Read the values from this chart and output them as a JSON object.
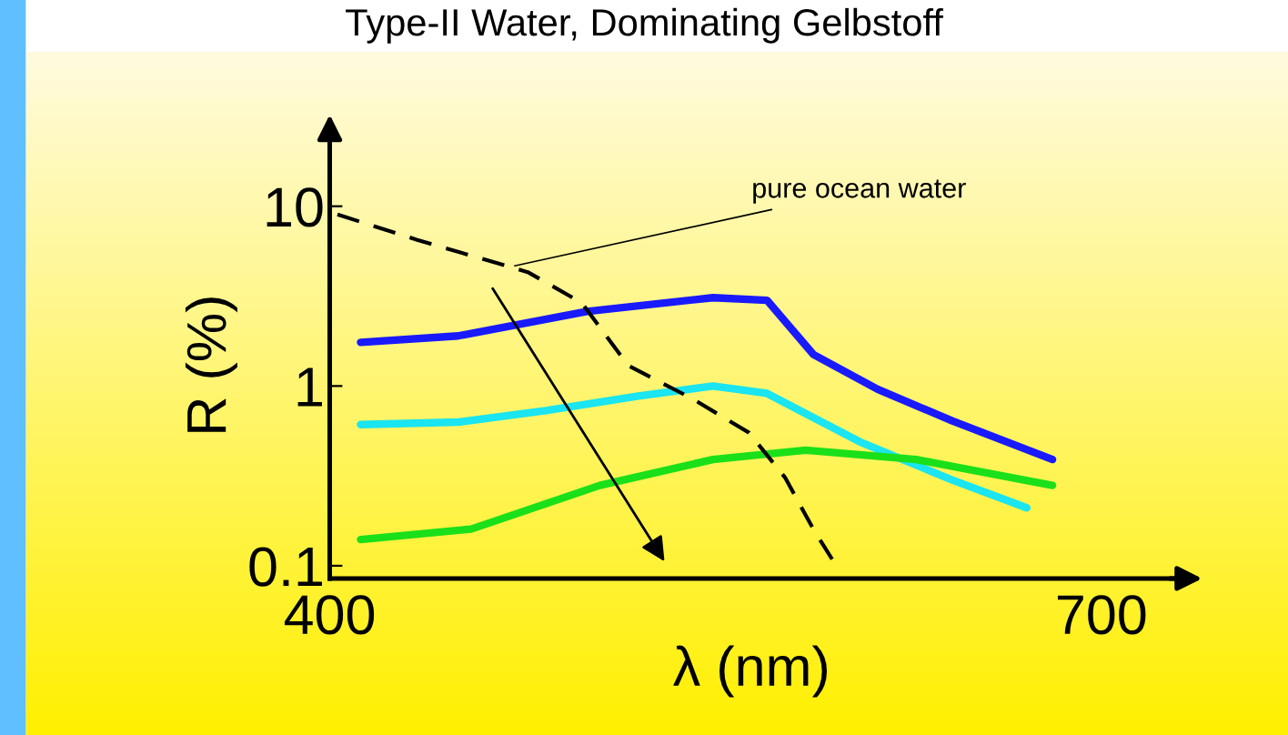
{
  "chart_data": {
    "type": "line",
    "title": "Type-II Water, Dominating Gelbstoff",
    "xlabel": "λ (nm)",
    "ylabel": "R (%)",
    "log": "y",
    "xlim": [
      400,
      728
    ],
    "ylim": [
      0.085,
      20
    ],
    "xticks": [
      400,
      700
    ],
    "yticks": [
      0.1,
      1,
      10
    ],
    "grid": false,
    "legend": false,
    "annotations": [
      {
        "text": "pure ocean water",
        "x": 470,
        "y": 4.6
      }
    ],
    "series": [
      {
        "color": "#1a1aff",
        "line_style": "solid",
        "x": [
          412,
          450,
          500,
          549,
          570,
          588,
          613,
          642,
          681
        ],
        "values": [
          1.75,
          1.9,
          2.6,
          3.1,
          3.0,
          1.5,
          0.96,
          0.64,
          0.39
        ]
      },
      {
        "color": "#1ae5f0",
        "line_style": "solid",
        "x": [
          412,
          450,
          484,
          520,
          549,
          570,
          606,
          642,
          671
        ],
        "values": [
          0.61,
          0.63,
          0.73,
          0.88,
          1.0,
          0.91,
          0.49,
          0.3,
          0.21
        ]
      },
      {
        "color": "#1ae01a",
        "line_style": "solid",
        "x": [
          412,
          455,
          505,
          549,
          585,
          628,
          681
        ],
        "values": [
          0.14,
          0.16,
          0.28,
          0.39,
          0.44,
          0.39,
          0.28
        ]
      },
      {
        "color": "#000000",
        "line_style": "dashed",
        "x": [
          403,
          434,
          477,
          498,
          516,
          541,
          563,
          577,
          588,
          596
        ],
        "values": [
          9,
          6.5,
          4.3,
          2.9,
          1.3,
          0.85,
          0.55,
          0.31,
          0.16,
          0.105
        ]
      }
    ]
  }
}
